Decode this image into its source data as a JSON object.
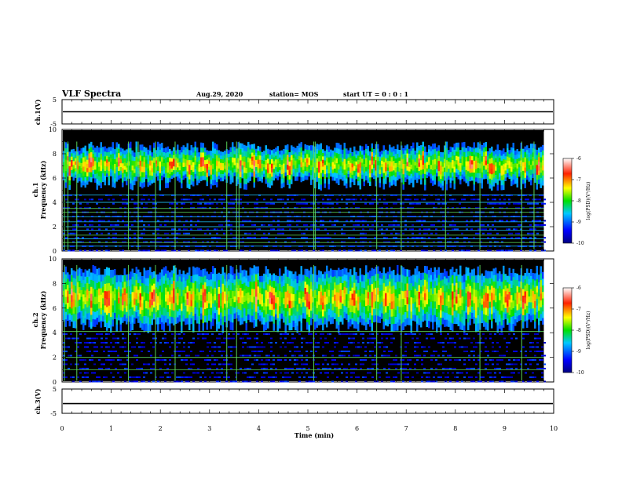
{
  "header": {
    "title": "VLF Spectra",
    "date": "Aug.29, 2020",
    "station": "station= MOS",
    "start": "start  UT =   0 : 0  : 1"
  },
  "chart_data": [
    {
      "type": "line",
      "panel": "ch1-waveform",
      "ylabel": "ch.1(V)",
      "ylim": [
        -5,
        5
      ],
      "yticks": [
        "5",
        "-5"
      ],
      "xlim": [
        0,
        10
      ],
      "series": [
        {
          "values": [
            0,
            0
          ]
        }
      ]
    },
    {
      "type": "heatmap",
      "panel": "ch1-spectrogram",
      "ylabel_ch": "ch.1",
      "ylabel": "Frequency (kHz)",
      "ylim": [
        0,
        10
      ],
      "yticks": [
        "0",
        "2",
        "4",
        "6",
        "8",
        "10"
      ],
      "xlim": [
        0,
        10
      ],
      "data_end_min": 9.8,
      "band_khz": [
        5,
        9
      ],
      "colorbar": {
        "label": "log(PSD)(V²/Hz)",
        "ticks": [
          "-6",
          "-7",
          "-8",
          "-9",
          "-10"
        ],
        "range": [
          -10,
          -6
        ]
      },
      "lines_khz": [
        0.4,
        0.7,
        1.0,
        1.3,
        1.7,
        2.0,
        2.4,
        2.8,
        3.2,
        3.5,
        4.0,
        4.6
      ],
      "spikes_min": [
        0.05,
        0.12,
        0.3,
        1.35,
        1.55,
        1.9,
        2.3,
        3.35,
        3.55,
        3.6,
        5.12,
        5.15,
        6.4,
        6.9,
        7.8,
        8.5,
        9.35,
        9.6
      ]
    },
    {
      "type": "heatmap",
      "panel": "ch2-spectrogram",
      "ylabel_ch": "ch.2",
      "ylabel": "Frequency (kHz)",
      "ylim": [
        0,
        10
      ],
      "yticks": [
        "0",
        "2",
        "4",
        "6",
        "8",
        "10"
      ],
      "xlim": [
        0,
        10
      ],
      "data_end_min": 9.8,
      "band_khz": [
        4,
        9.5
      ],
      "colorbar": {
        "label": "log(PSD)(V²/Hz)",
        "ticks": [
          "-6",
          "-7",
          "-8",
          "-9",
          "-10"
        ],
        "range": [
          -10,
          -6
        ]
      },
      "lines_khz": [
        1.0,
        2.0,
        4.1
      ],
      "spikes_min": [
        0.05,
        0.3,
        1.35,
        1.9,
        2.3,
        3.35,
        3.55,
        5.12,
        6.4,
        6.9,
        8.5,
        9.35
      ]
    },
    {
      "type": "line",
      "panel": "ch3-waveform",
      "ylabel": "ch.3(V)",
      "ylim": [
        -5,
        5
      ],
      "yticks": [
        "5",
        "-5"
      ],
      "xlim": [
        0,
        10
      ],
      "xlabel": "Time  (min)",
      "xticks": [
        "0",
        "1",
        "2",
        "3",
        "4",
        "5",
        "6",
        "7",
        "8",
        "9",
        "10"
      ],
      "series": [
        {
          "values": [
            -1,
            -1
          ]
        }
      ]
    }
  ]
}
